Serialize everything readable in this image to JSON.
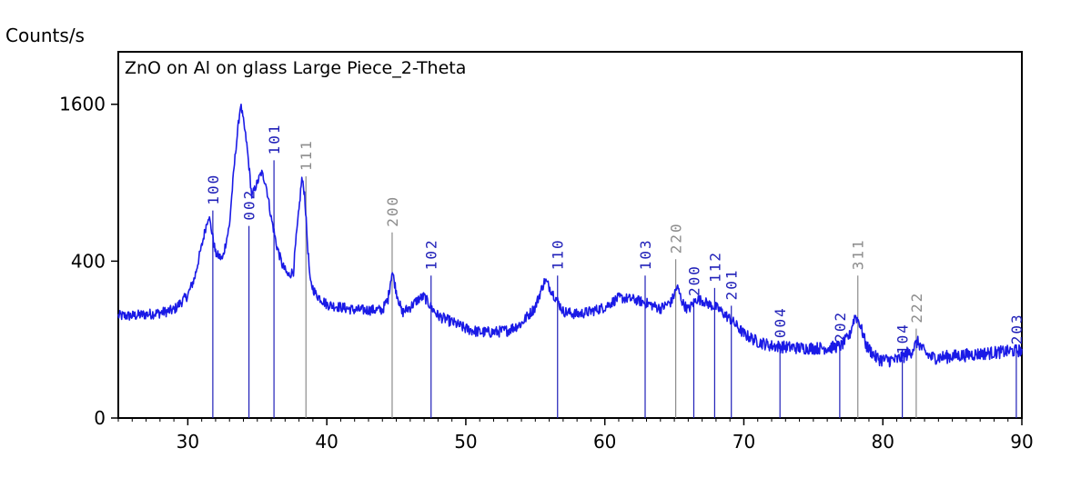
{
  "chart_data": {
    "type": "line",
    "title": "ZnO on Al on glass Large Piece_2-Theta",
    "ylabel": "Counts/s",
    "xlabel": "",
    "xlim": [
      25,
      90
    ],
    "xticks": [
      30,
      40,
      50,
      60,
      70,
      80,
      90
    ],
    "yticks": [
      0,
      400,
      1600
    ],
    "y_scale": "sqrt",
    "grid": false,
    "colors": {
      "pattern": "#1a1ae6",
      "zno_ref": "#1f1fb8",
      "al_ref": "#8c8c8c"
    },
    "pattern": {
      "x": [
        25,
        26,
        27,
        28,
        29,
        30,
        30.5,
        31,
        31.5,
        32,
        32.5,
        33,
        33.5,
        33.8,
        34.2,
        34.6,
        35,
        35.3,
        35.6,
        36,
        36.4,
        36.8,
        37.2,
        37.6,
        38,
        38.2,
        38.4,
        38.6,
        38.8,
        39.2,
        40,
        41,
        42,
        43,
        44,
        44.4,
        44.7,
        45,
        45.4,
        46,
        46.6,
        47,
        47.5,
        48,
        49,
        50,
        51,
        52,
        53,
        54,
        55,
        55.7,
        56.3,
        57,
        58,
        59,
        60,
        61,
        62,
        63,
        64,
        64.8,
        65.2,
        65.6,
        66,
        66.6,
        67,
        67.5,
        68,
        69,
        70,
        71,
        72,
        74,
        76,
        77,
        77.6,
        78,
        78.3,
        78.8,
        79.5,
        80,
        81,
        82,
        82.5,
        83,
        83.5,
        84,
        86,
        88,
        90
      ],
      "y": [
        170,
        170,
        175,
        180,
        190,
        245,
        320,
        480,
        670,
        440,
        410,
        600,
        1230,
        1600,
        1260,
        800,
        900,
        980,
        900,
        650,
        480,
        380,
        330,
        350,
        700,
        930,
        820,
        500,
        300,
        250,
        210,
        200,
        190,
        190,
        190,
        230,
        350,
        260,
        180,
        200,
        230,
        240,
        200,
        170,
        150,
        130,
        120,
        120,
        125,
        145,
        200,
        310,
        250,
        185,
        175,
        185,
        200,
        235,
        230,
        215,
        195,
        220,
        280,
        215,
        190,
        230,
        225,
        210,
        200,
        160,
        115,
        95,
        85,
        80,
        80,
        85,
        110,
        170,
        150,
        85,
        60,
        55,
        55,
        70,
        95,
        70,
        60,
        60,
        65,
        70,
        75
      ]
    },
    "zno_reflections": [
      {
        "x": 31.8,
        "label": "100",
        "intensity": 700
      },
      {
        "x": 34.4,
        "label": "002",
        "intensity": 600
      },
      {
        "x": 36.2,
        "label": "101",
        "intensity": 1080
      },
      {
        "x": 47.5,
        "label": "102",
        "intensity": 330
      },
      {
        "x": 56.6,
        "label": "110",
        "intensity": 330
      },
      {
        "x": 62.9,
        "label": "103",
        "intensity": 330
      },
      {
        "x": 66.4,
        "label": "200",
        "intensity": 220
      },
      {
        "x": 67.9,
        "label": "112",
        "intensity": 275
      },
      {
        "x": 69.1,
        "label": "201",
        "intensity": 205
      },
      {
        "x": 72.6,
        "label": "004",
        "intensity": 90
      },
      {
        "x": 76.9,
        "label": "202",
        "intensity": 80
      },
      {
        "x": 81.4,
        "label": "104",
        "intensity": 55
      },
      {
        "x": 89.6,
        "label": "203",
        "intensity": 75
      }
    ],
    "al_reflections": [
      {
        "x": 38.5,
        "label": "111",
        "intensity": 950
      },
      {
        "x": 44.7,
        "label": "200",
        "intensity": 560
      },
      {
        "x": 65.1,
        "label": "220",
        "intensity": 410
      },
      {
        "x": 78.2,
        "label": "311",
        "intensity": 330
      },
      {
        "x": 82.4,
        "label": "222",
        "intensity": 130
      }
    ]
  }
}
